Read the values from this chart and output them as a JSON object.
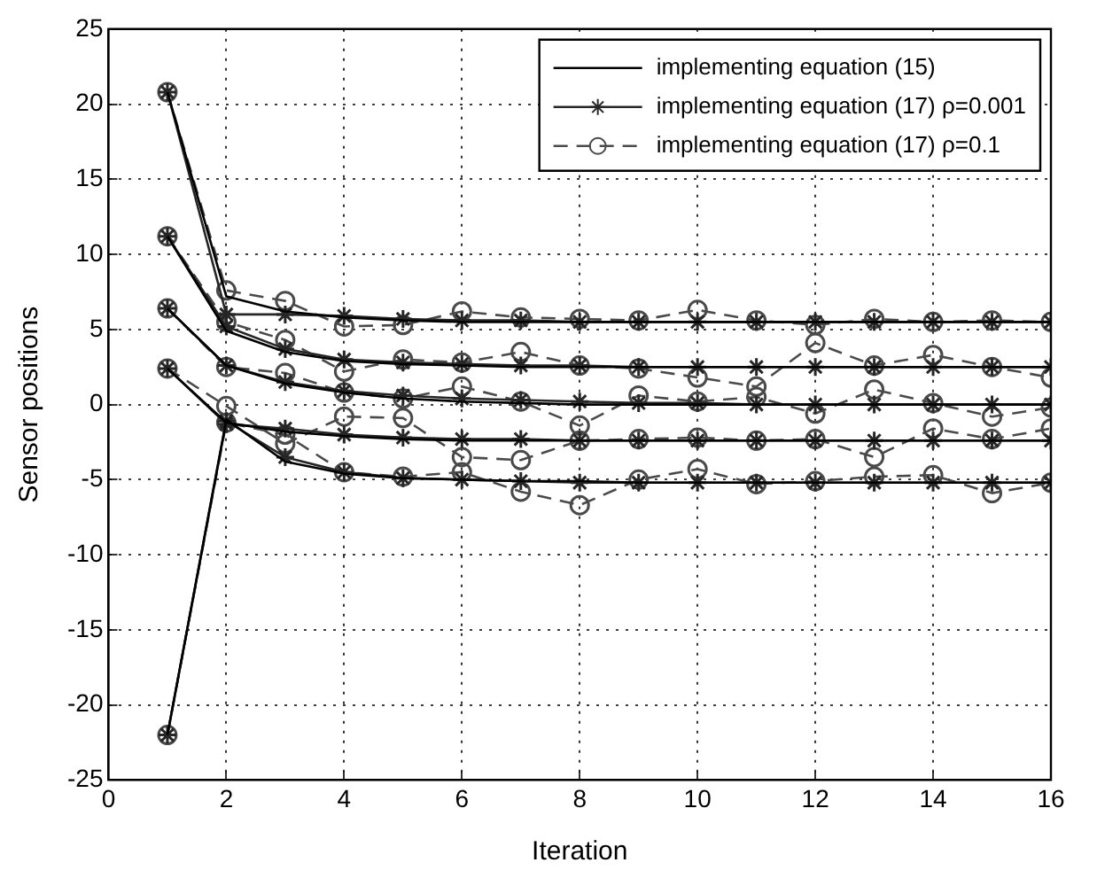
{
  "chart_data": {
    "type": "line",
    "xlabel": "Iteration",
    "ylabel": "Sensor positions",
    "x": [
      1,
      2,
      3,
      4,
      5,
      6,
      7,
      8,
      9,
      10,
      11,
      12,
      13,
      14,
      15,
      16
    ],
    "xlim": [
      0,
      16
    ],
    "xticks": [
      0,
      2,
      4,
      6,
      8,
      10,
      12,
      14,
      16
    ],
    "ylim": [
      -25,
      25
    ],
    "yticks": [
      -25,
      -20,
      -15,
      -10,
      -5,
      0,
      5,
      10,
      15,
      20,
      25
    ],
    "grid": true,
    "legend": "top right",
    "series": [
      {
        "name": "implementing equation (15)",
        "color": "#000000",
        "marker": "none",
        "line_style": "solid",
        "values": [
          20.8,
          7.2,
          6.2,
          5.8,
          5.6,
          5.5,
          5.5,
          5.5,
          5.5,
          5.5,
          5.5,
          5.5,
          5.5,
          5.5,
          5.5,
          5.5
        ]
      },
      {
        "color": "#000000",
        "marker": "none",
        "line_style": "solid",
        "values": [
          11.2,
          4.9,
          3.5,
          2.9,
          2.7,
          2.6,
          2.5,
          2.5,
          2.5,
          2.5,
          2.5,
          2.5,
          2.5,
          2.5,
          2.5,
          2.5
        ]
      },
      {
        "color": "#000000",
        "marker": "none",
        "line_style": "solid",
        "values": [
          6.4,
          2.6,
          1.4,
          0.8,
          0.4,
          0.2,
          0.1,
          0,
          0,
          0,
          0,
          0,
          0,
          0,
          0,
          0
        ]
      },
      {
        "color": "#000000",
        "marker": "none",
        "line_style": "solid",
        "values": [
          2.4,
          -1.2,
          -1.8,
          -2.1,
          -2.3,
          -2.4,
          -2.4,
          -2.4,
          -2.4,
          -2.4,
          -2.4,
          -2.4,
          -2.4,
          -2.4,
          -2.4,
          -2.4
        ]
      },
      {
        "color": "#000000",
        "marker": "none",
        "line_style": "solid",
        "values": [
          -22,
          -1,
          -3.8,
          -4.6,
          -4.9,
          -5,
          -5.1,
          -5.1,
          -5.2,
          -5.2,
          -5.2,
          -5.2,
          -5.2,
          -5.2,
          -5.2,
          -5.2
        ]
      },
      {
        "name": "implementing equation (17) ρ=0.001",
        "color": "#262626",
        "marker": "cross",
        "line_style": "solid",
        "values": [
          20.8,
          6,
          6,
          5.9,
          5.7,
          5.6,
          5.6,
          5.5,
          5.5,
          5.5,
          5.5,
          5.5,
          5.5,
          5.5,
          5.5,
          5.5
        ]
      },
      {
        "color": "#262626",
        "marker": "cross",
        "line_style": "solid",
        "values": [
          11.2,
          5.2,
          3.7,
          3,
          2.8,
          2.7,
          2.6,
          2.6,
          2.5,
          2.5,
          2.5,
          2.5,
          2.5,
          2.5,
          2.5,
          2.5
        ]
      },
      {
        "color": "#262626",
        "marker": "cross",
        "line_style": "solid",
        "values": [
          6.4,
          2.6,
          1.5,
          0.9,
          0.6,
          0.4,
          0.3,
          0.2,
          0.1,
          0.1,
          0,
          0,
          0,
          0,
          0,
          0
        ]
      },
      {
        "color": "#262626",
        "marker": "cross",
        "line_style": "solid",
        "values": [
          2.4,
          -1.3,
          -1.6,
          -2,
          -2.2,
          -2.3,
          -2.3,
          -2.4,
          -2.4,
          -2.4,
          -2.4,
          -2.4,
          -2.4,
          -2.4,
          -2.4,
          -2.4
        ]
      },
      {
        "color": "#262626",
        "marker": "cross",
        "line_style": "solid",
        "values": [
          -22,
          -1.1,
          -3.5,
          -4.5,
          -4.9,
          -5,
          -5.1,
          -5.2,
          -5.2,
          -5.2,
          -5.2,
          -5.2,
          -5.2,
          -5.2,
          -5.2,
          -5.2
        ]
      },
      {
        "name": "implementing equation (17) ρ=0.1",
        "color": "#4a4a4a",
        "marker": "circle",
        "line_style": "dashed",
        "values": [
          20.8,
          7.6,
          6.9,
          5.2,
          5.3,
          6.2,
          5.8,
          5.7,
          5.6,
          6.3,
          5.6,
          5.3,
          5.7,
          5.5,
          5.6,
          5.5
        ]
      },
      {
        "color": "#4a4a4a",
        "marker": "circle",
        "line_style": "dashed",
        "values": [
          11.2,
          5.5,
          4.3,
          2.2,
          3,
          2.8,
          3.5,
          2.6,
          2.4,
          1.8,
          1.2,
          4.1,
          2.6,
          3.3,
          2.5,
          1.8
        ]
      },
      {
        "color": "#4a4a4a",
        "marker": "circle",
        "line_style": "dashed",
        "values": [
          6.4,
          2.5,
          2.1,
          0.8,
          0.4,
          1.2,
          0.2,
          -1.4,
          0.6,
          0.2,
          0.5,
          -0.6,
          1,
          0.1,
          -0.8,
          -0.2
        ]
      },
      {
        "color": "#4a4a4a",
        "marker": "circle",
        "line_style": "dashed",
        "values": [
          2.4,
          -0.1,
          -2.6,
          -0.8,
          -0.9,
          -3.5,
          -3.7,
          -2.4,
          -2.3,
          -2.2,
          -2.4,
          -2.3,
          -3.5,
          -1.6,
          -2.3,
          -1.6
        ]
      },
      {
        "color": "#4a4a4a",
        "marker": "circle",
        "line_style": "dashed",
        "values": [
          -22,
          -1.2,
          -2,
          -4.5,
          -4.8,
          -4.5,
          -5.8,
          -6.7,
          -5,
          -4.3,
          -5.3,
          -5.1,
          -4.8,
          -4.7,
          -5.9,
          -5.2
        ]
      }
    ]
  }
}
